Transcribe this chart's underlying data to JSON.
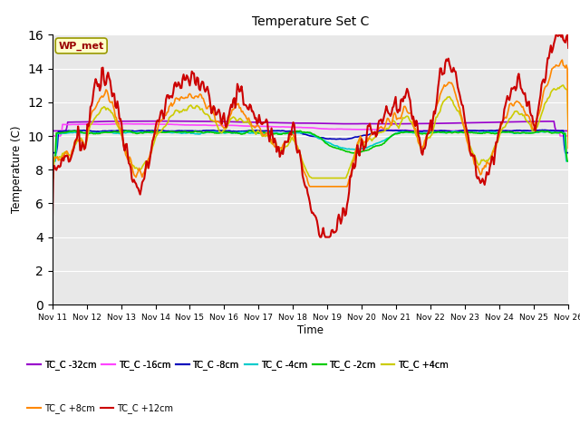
{
  "title": "Temperature Set C",
  "xlabel": "Time",
  "ylabel": "Temperature (C)",
  "ylim": [
    0,
    16
  ],
  "yticks": [
    0,
    2,
    4,
    6,
    8,
    10,
    12,
    14,
    16
  ],
  "bg_color": "#e8e8e8",
  "series": [
    {
      "label": "TC_C -32cm",
      "color": "#9900cc",
      "linewidth": 1.2
    },
    {
      "label": "TC_C -16cm",
      "color": "#ff44ff",
      "linewidth": 1.2
    },
    {
      "label": "TC_C -8cm",
      "color": "#0000bb",
      "linewidth": 1.2
    },
    {
      "label": "TC_C -4cm",
      "color": "#00cccc",
      "linewidth": 1.2
    },
    {
      "label": "TC_C -2cm",
      "color": "#00cc00",
      "linewidth": 1.2
    },
    {
      "label": "TC_C +4cm",
      "color": "#cccc00",
      "linewidth": 1.2
    },
    {
      "label": "TC_C +8cm",
      "color": "#ff8800",
      "linewidth": 1.2
    },
    {
      "label": "TC_C +12cm",
      "color": "#cc0000",
      "linewidth": 1.5
    }
  ],
  "xtick_labels": [
    "Nov 11",
    "Nov 12",
    "Nov 13",
    "Nov 14",
    "Nov 15",
    "Nov 16",
    "Nov 17",
    "Nov 18",
    "Nov 19",
    "Nov 20",
    "Nov 21",
    "Nov 22",
    "Nov 23",
    "Nov 24",
    "Nov 25",
    "Nov 26"
  ],
  "annotation_text": "WP_met"
}
